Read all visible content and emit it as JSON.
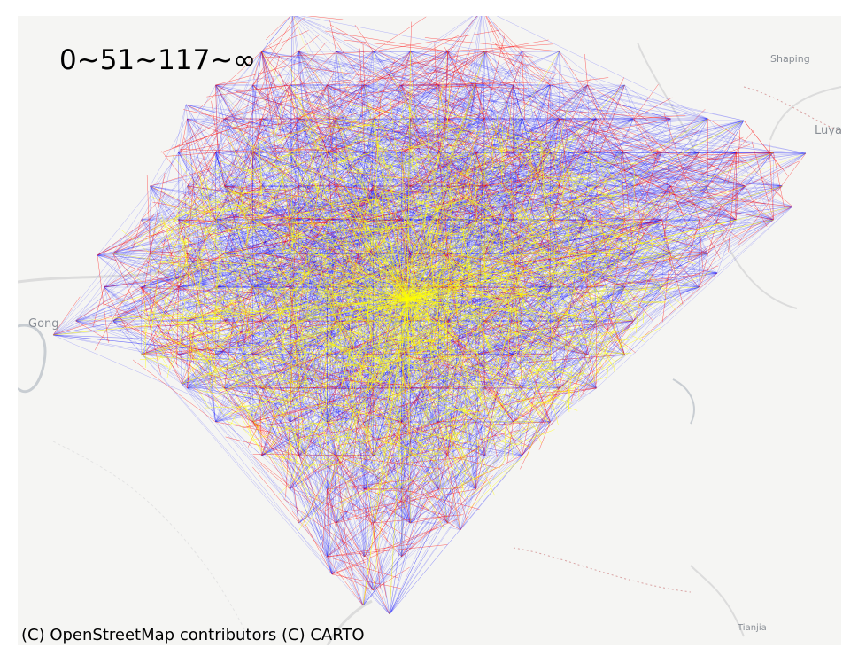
{
  "legend": {
    "text": "0~51~117~∞"
  },
  "attribution": {
    "text": "(C) OpenStreetMap contributors (C) CARTO"
  },
  "places": [
    {
      "name": "Shaping"
    },
    {
      "name": "Luya"
    },
    {
      "name": "Gong"
    },
    {
      "name": "Tianjia"
    }
  ],
  "colors": {
    "far": "#0000ff",
    "mid": "#ff0000",
    "near": "#ffff00",
    "basemap": "#f5f5f3",
    "road": "#dcdcdc",
    "river": "#c8cdd2",
    "boundary": "#d9a3a3"
  },
  "distance_classes": [
    {
      "range": "0~51",
      "color": "#ffff00"
    },
    {
      "range": "51~117",
      "color": "#ff0000"
    },
    {
      "range": "117~∞",
      "color": "#0000ff"
    }
  ]
}
